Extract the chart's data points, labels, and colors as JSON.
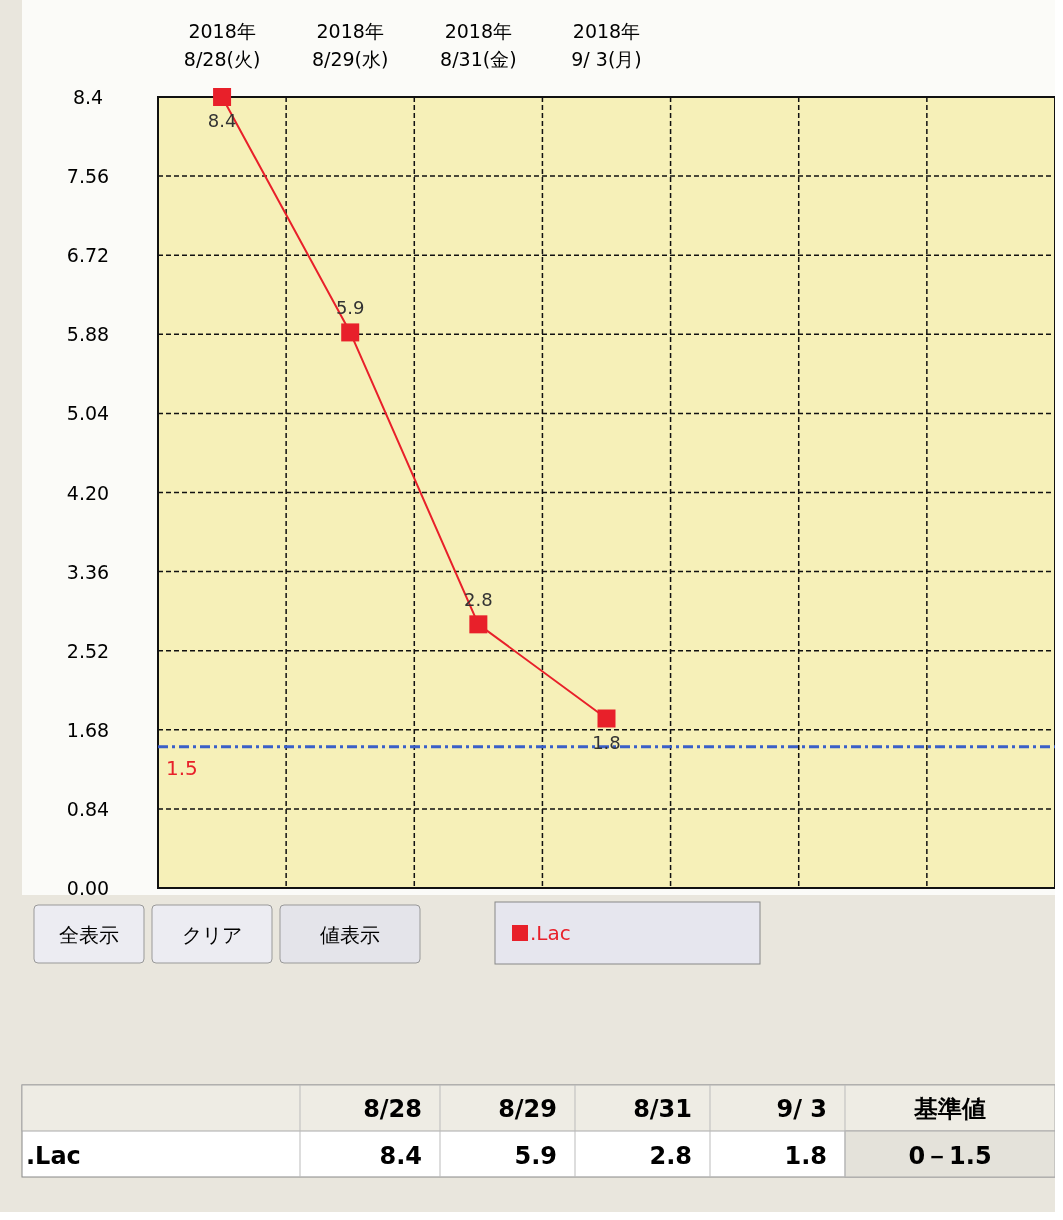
{
  "chart_data": {
    "type": "line",
    "categories": [
      "2018年\n8/28(火)",
      "2018年\n8/29(水)",
      "2018年\n8/31(金)",
      "2018年\n9/ 3(月)",
      null,
      null,
      null
    ],
    "series": [
      {
        "name": ".Lac",
        "color": "#e8202a",
        "values": [
          8.4,
          5.9,
          2.8,
          1.8,
          null,
          null,
          null
        ]
      }
    ],
    "ylim": [
      0,
      8.4
    ],
    "yticks": [
      {
        "value": 0,
        "label": "0.00"
      },
      0.84,
      1.68,
      2.52,
      3.36,
      {
        "value": 4.2,
        "label": "4.20"
      },
      5.04,
      5.88,
      6.72,
      7.56,
      8.4
    ],
    "grid": true,
    "marker": "square",
    "line_style": "solid",
    "data_labels": true,
    "legend": "bottom",
    "ref_lines": [
      {
        "axis": "y",
        "value": 1.5,
        "label": "1.5",
        "color": "#3a5fc8",
        "line_style": "dashed"
      }
    ],
    "annotations": [
      "全表示",
      "クリア",
      "値表示",
      "8/28",
      "8/29",
      "8/31",
      "9/ 3",
      "基準値",
      "0－1.5",
      "8.4",
      "5.9",
      "2.8",
      "1.8"
    ]
  }
}
